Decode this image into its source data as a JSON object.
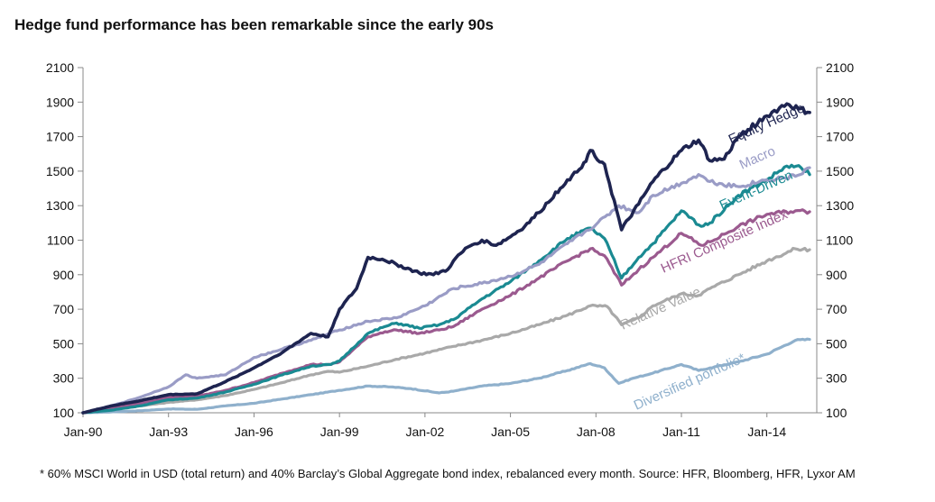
{
  "title": "Hedge fund performance has been remarkable since the early 90s",
  "footnote": "* 60% MSCI World in USD (total return) and 40% Barclay’s Global Aggregate bond index, rebalanced every month. Source: HFR, Bloomberg, HFR, Lyxor AM",
  "chart_data": {
    "type": "line",
    "title": "Hedge fund performance has been remarkable since the early 90s",
    "xlabel": "",
    "ylabel": "",
    "xlim": [
      1990.0,
      2015.7
    ],
    "ylim": [
      100,
      2100
    ],
    "x_ticks": [
      "Jan-90",
      "Jan-93",
      "Jan-96",
      "Jan-99",
      "Jan-02",
      "Jan-05",
      "Jan-08",
      "Jan-11",
      "Jan-14"
    ],
    "y_ticks": [
      100,
      300,
      500,
      700,
      900,
      1100,
      1300,
      1500,
      1700,
      1900,
      2100
    ],
    "grid": false,
    "legend": "inline labels at line ends",
    "series": [
      {
        "name": "Diversified portfolio*",
        "color": "#8fb0cc",
        "points": [
          [
            1990.0,
            100
          ],
          [
            1991.0,
            105
          ],
          [
            1992.0,
            112
          ],
          [
            1993.0,
            122
          ],
          [
            1994.0,
            120
          ],
          [
            1995.0,
            140
          ],
          [
            1996.0,
            155
          ],
          [
            1997.0,
            180
          ],
          [
            1998.0,
            205
          ],
          [
            1999.0,
            230
          ],
          [
            2000.0,
            255
          ],
          [
            2000.8,
            250
          ],
          [
            2001.5,
            240
          ],
          [
            2002.5,
            215
          ],
          [
            2003.0,
            225
          ],
          [
            2004.0,
            255
          ],
          [
            2005.0,
            270
          ],
          [
            2006.0,
            300
          ],
          [
            2007.0,
            345
          ],
          [
            2007.8,
            385
          ],
          [
            2008.3,
            360
          ],
          [
            2008.8,
            270
          ],
          [
            2009.3,
            300
          ],
          [
            2010.0,
            330
          ],
          [
            2011.0,
            380
          ],
          [
            2011.6,
            345
          ],
          [
            2012.0,
            360
          ],
          [
            2013.0,
            395
          ],
          [
            2014.0,
            440
          ],
          [
            2015.0,
            520
          ],
          [
            2015.5,
            525
          ]
        ]
      },
      {
        "name": "Relative Value",
        "color": "#a9a9a9",
        "points": [
          [
            1990.0,
            100
          ],
          [
            1991.0,
            120
          ],
          [
            1992.0,
            140
          ],
          [
            1993.0,
            160
          ],
          [
            1994.0,
            175
          ],
          [
            1995.0,
            200
          ],
          [
            1996.0,
            235
          ],
          [
            1997.0,
            275
          ],
          [
            1998.0,
            320
          ],
          [
            1998.6,
            340
          ],
          [
            1999.0,
            335
          ],
          [
            2000.0,
            370
          ],
          [
            2001.0,
            410
          ],
          [
            2002.0,
            445
          ],
          [
            2003.0,
            485
          ],
          [
            2004.0,
            520
          ],
          [
            2005.0,
            560
          ],
          [
            2006.0,
            610
          ],
          [
            2007.0,
            665
          ],
          [
            2007.8,
            720
          ],
          [
            2008.4,
            715
          ],
          [
            2008.9,
            610
          ],
          [
            2009.5,
            650
          ],
          [
            2010.0,
            720
          ],
          [
            2011.0,
            790
          ],
          [
            2011.6,
            780
          ],
          [
            2012.0,
            820
          ],
          [
            2013.0,
            900
          ],
          [
            2014.0,
            980
          ],
          [
            2015.0,
            1050
          ],
          [
            2015.5,
            1045
          ]
        ]
      },
      {
        "name": "HFRI Composite Index",
        "color": "#9b5a8f",
        "points": [
          [
            1990.0,
            100
          ],
          [
            1991.0,
            125
          ],
          [
            1992.0,
            155
          ],
          [
            1993.0,
            190
          ],
          [
            1994.0,
            195
          ],
          [
            1995.0,
            230
          ],
          [
            1996.0,
            275
          ],
          [
            1997.0,
            330
          ],
          [
            1998.0,
            380
          ],
          [
            1998.7,
            380
          ],
          [
            1999.0,
            395
          ],
          [
            2000.0,
            540
          ],
          [
            2000.6,
            570
          ],
          [
            2001.0,
            580
          ],
          [
            2001.8,
            560
          ],
          [
            2002.5,
            580
          ],
          [
            2003.0,
            600
          ],
          [
            2004.0,
            700
          ],
          [
            2005.0,
            780
          ],
          [
            2006.0,
            880
          ],
          [
            2007.0,
            980
          ],
          [
            2007.8,
            1050
          ],
          [
            2008.3,
            1010
          ],
          [
            2008.9,
            840
          ],
          [
            2009.5,
            930
          ],
          [
            2010.0,
            1000
          ],
          [
            2011.0,
            1140
          ],
          [
            2011.7,
            1070
          ],
          [
            2012.0,
            1090
          ],
          [
            2013.0,
            1180
          ],
          [
            2014.0,
            1250
          ],
          [
            2015.0,
            1270
          ],
          [
            2015.5,
            1265
          ]
        ]
      },
      {
        "name": "Event-Driven",
        "color": "#1a8a92",
        "points": [
          [
            1990.0,
            100
          ],
          [
            1991.0,
            115
          ],
          [
            1992.0,
            140
          ],
          [
            1993.0,
            175
          ],
          [
            1994.0,
            185
          ],
          [
            1995.0,
            220
          ],
          [
            1996.0,
            265
          ],
          [
            1997.0,
            320
          ],
          [
            1998.0,
            370
          ],
          [
            1998.7,
            380
          ],
          [
            1999.0,
            400
          ],
          [
            2000.0,
            560
          ],
          [
            2000.6,
            600
          ],
          [
            2001.0,
            620
          ],
          [
            2001.8,
            590
          ],
          [
            2002.5,
            610
          ],
          [
            2003.0,
            640
          ],
          [
            2004.0,
            760
          ],
          [
            2005.0,
            860
          ],
          [
            2006.0,
            980
          ],
          [
            2007.0,
            1110
          ],
          [
            2007.8,
            1170
          ],
          [
            2008.3,
            1110
          ],
          [
            2008.9,
            880
          ],
          [
            2009.5,
            1000
          ],
          [
            2010.0,
            1080
          ],
          [
            2011.0,
            1270
          ],
          [
            2011.7,
            1180
          ],
          [
            2012.0,
            1200
          ],
          [
            2013.0,
            1360
          ],
          [
            2014.0,
            1450
          ],
          [
            2014.7,
            1530
          ],
          [
            2015.2,
            1520
          ],
          [
            2015.5,
            1480
          ]
        ]
      },
      {
        "name": "Macro",
        "color": "#9a9cc6",
        "points": [
          [
            1990.0,
            100
          ],
          [
            1991.0,
            140
          ],
          [
            1992.0,
            190
          ],
          [
            1993.0,
            250
          ],
          [
            1993.6,
            320
          ],
          [
            1994.0,
            300
          ],
          [
            1995.0,
            320
          ],
          [
            1996.0,
            420
          ],
          [
            1997.0,
            470
          ],
          [
            1998.0,
            520
          ],
          [
            1999.0,
            580
          ],
          [
            2000.0,
            630
          ],
          [
            2001.0,
            650
          ],
          [
            2002.0,
            720
          ],
          [
            2003.0,
            820
          ],
          [
            2004.0,
            850
          ],
          [
            2005.0,
            890
          ],
          [
            2006.0,
            960
          ],
          [
            2007.0,
            1080
          ],
          [
            2008.0,
            1190
          ],
          [
            2008.8,
            1300
          ],
          [
            2009.5,
            1260
          ],
          [
            2010.0,
            1360
          ],
          [
            2011.0,
            1430
          ],
          [
            2011.6,
            1480
          ],
          [
            2012.0,
            1440
          ],
          [
            2013.0,
            1410
          ],
          [
            2014.0,
            1450
          ],
          [
            2015.0,
            1470
          ],
          [
            2015.5,
            1520
          ]
        ]
      },
      {
        "name": "Equity Hedge",
        "color": "#1e2450",
        "points": [
          [
            1990.0,
            100
          ],
          [
            1991.0,
            140
          ],
          [
            1992.0,
            170
          ],
          [
            1993.0,
            205
          ],
          [
            1994.0,
            210
          ],
          [
            1995.0,
            280
          ],
          [
            1996.0,
            360
          ],
          [
            1997.0,
            450
          ],
          [
            1998.0,
            560
          ],
          [
            1998.6,
            540
          ],
          [
            1999.0,
            700
          ],
          [
            1999.6,
            820
          ],
          [
            2000.0,
            1000
          ],
          [
            2000.5,
            990
          ],
          [
            2001.0,
            960
          ],
          [
            2001.8,
            910
          ],
          [
            2002.3,
            900
          ],
          [
            2002.8,
            930
          ],
          [
            2003.0,
            980
          ],
          [
            2003.5,
            1060
          ],
          [
            2004.0,
            1100
          ],
          [
            2004.5,
            1070
          ],
          [
            2005.0,
            1120
          ],
          [
            2005.5,
            1180
          ],
          [
            2006.0,
            1260
          ],
          [
            2007.0,
            1450
          ],
          [
            2007.5,
            1520
          ],
          [
            2007.8,
            1620
          ],
          [
            2008.3,
            1540
          ],
          [
            2008.9,
            1160
          ],
          [
            2009.5,
            1310
          ],
          [
            2010.0,
            1440
          ],
          [
            2011.0,
            1620
          ],
          [
            2011.6,
            1680
          ],
          [
            2012.0,
            1560
          ],
          [
            2012.5,
            1570
          ],
          [
            2013.0,
            1700
          ],
          [
            2014.0,
            1820
          ],
          [
            2014.7,
            1890
          ],
          [
            2015.1,
            1860
          ],
          [
            2015.5,
            1840
          ]
        ]
      }
    ]
  }
}
